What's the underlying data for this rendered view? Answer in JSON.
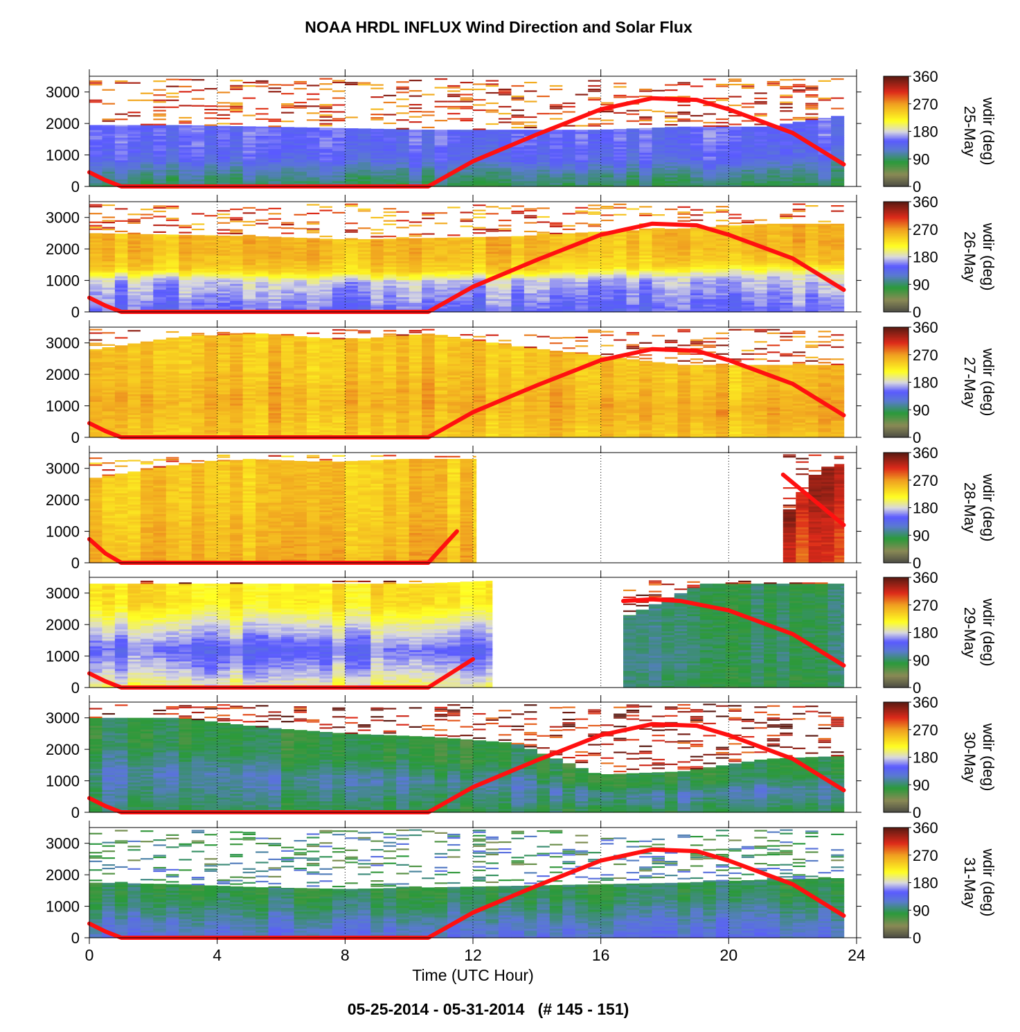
{
  "title": "NOAA HRDL INFLUX Wind Direction and Solar Flux",
  "footer": "05-25-2014 - 05-31-2014   (# 145 - 151)",
  "chart_data": {
    "type": "heatmap",
    "xlabel": "Time (UTC Hour)",
    "x_ticks": [
      0,
      4,
      8,
      12,
      16,
      20,
      24
    ],
    "xlim": [
      0,
      24
    ],
    "y_ticks": [
      0,
      1000,
      2000,
      3000
    ],
    "ylim": [
      0,
      3500
    ],
    "colorbar": {
      "label": "wdir (deg)",
      "ticks": [
        0,
        90,
        180,
        270,
        360
      ],
      "range": [
        0,
        360
      ],
      "stops": [
        {
          "value": 0,
          "color": "#4a4a44"
        },
        {
          "value": 40,
          "color": "#8a8a55"
        },
        {
          "value": 80,
          "color": "#2a9a3a"
        },
        {
          "value": 120,
          "color": "#5a7ad0"
        },
        {
          "value": 150,
          "color": "#5a5aff"
        },
        {
          "value": 180,
          "color": "#d8d8e0"
        },
        {
          "value": 215,
          "color": "#ffff22"
        },
        {
          "value": 270,
          "color": "#f0a020"
        },
        {
          "value": 310,
          "color": "#dd2a1a"
        },
        {
          "value": 360,
          "color": "#5a1a12"
        }
      ]
    },
    "solar_flux_color": "#ff1010",
    "panels": [
      {
        "day": "25-May",
        "segments": [
          {
            "t": [
              0,
              23.6
            ],
            "top": [
              1950,
              1950,
              1900,
              1850,
              1800,
              1800,
              1800,
              1900,
              1900,
              2300
            ],
            "layers": [
              [
                0,
                90
              ],
              [
                0.22,
                110
              ],
              [
                0.45,
                140
              ],
              [
                0.75,
                150
              ]
            ],
            "cap": 300
          }
        ],
        "solar_flux": [
          [
            0,
            450
          ],
          [
            0.5,
            200
          ],
          [
            1,
            0
          ],
          [
            10.6,
            0
          ],
          [
            12,
            800
          ],
          [
            14,
            1650
          ],
          [
            16,
            2450
          ],
          [
            17.6,
            2800
          ],
          [
            19,
            2750
          ],
          [
            20,
            2450
          ],
          [
            22,
            1700
          ],
          [
            23.6,
            700
          ]
        ]
      },
      {
        "day": "26-May",
        "segments": [
          {
            "t": [
              0,
              23.6
            ],
            "top": [
              2500,
              2450,
              2400,
              2300,
              2350,
              2400,
              2550,
              2650,
              2800,
              2800
            ],
            "layers": [
              [
                0,
                150
              ],
              [
                0.4,
                175
              ],
              [
                0.55,
                240
              ],
              [
                0.75,
                255
              ]
            ],
            "cap": 285
          }
        ],
        "solar_flux": [
          [
            0,
            450
          ],
          [
            0.5,
            200
          ],
          [
            1,
            0
          ],
          [
            10.6,
            0
          ],
          [
            12,
            800
          ],
          [
            14,
            1650
          ],
          [
            16,
            2450
          ],
          [
            17.6,
            2800
          ],
          [
            19,
            2750
          ],
          [
            20,
            2450
          ],
          [
            22,
            1700
          ],
          [
            23.6,
            700
          ]
        ]
      },
      {
        "day": "27-May",
        "segments": [
          {
            "t": [
              0,
              23.6
            ],
            "top": [
              2800,
              3200,
              3300,
              3100,
              3300,
              2900,
              2600,
              2300,
              2300,
              2300
            ],
            "layers": [
              [
                0,
                245
              ],
              [
                0.35,
                260
              ],
              [
                0.7,
                250
              ]
            ],
            "cap": 300
          }
        ],
        "solar_flux": [
          [
            0,
            450
          ],
          [
            0.5,
            200
          ],
          [
            1,
            0
          ],
          [
            10.6,
            0
          ],
          [
            12,
            800
          ],
          [
            14,
            1650
          ],
          [
            16,
            2450
          ],
          [
            17.6,
            2800
          ],
          [
            19,
            2750
          ],
          [
            20,
            2450
          ],
          [
            22,
            1700
          ],
          [
            23.6,
            700
          ]
        ]
      },
      {
        "day": "28-May",
        "segments": [
          {
            "t": [
              0,
              12.1
            ],
            "top": [
              2700,
              3100,
              3300,
              3200,
              3300,
              3300
            ],
            "layers": [
              [
                0,
                260
              ],
              [
                0.3,
                255
              ],
              [
                0.6,
                250
              ]
            ],
            "cap": 275
          },
          {
            "t": [
              21.7,
              23.6
            ],
            "top": [
              1700,
              3000,
              3200
            ],
            "layers": [
              [
                0,
                300
              ],
              [
                0.4,
                310
              ],
              [
                0.8,
                330
              ]
            ],
            "cap": 340
          }
        ],
        "solar_flux": [
          [
            0,
            750
          ],
          [
            0.5,
            300
          ],
          [
            1,
            0
          ],
          [
            10.6,
            0
          ],
          [
            11.5,
            1000
          ]
        ],
        "solar_flux_2": [
          [
            21.7,
            2800
          ],
          [
            23.6,
            1200
          ]
        ]
      },
      {
        "day": "29-May",
        "segments": [
          {
            "t": [
              0,
              12.6
            ],
            "top": [
              3300,
              3300,
              3300,
              3300,
              3300,
              3400
            ],
            "layers": [
              [
                0,
                200
              ],
              [
                0.15,
                175
              ],
              [
                0.35,
                150
              ],
              [
                0.6,
                190
              ],
              [
                0.8,
                230
              ]
            ],
            "cap": 310
          },
          {
            "t": [
              16.7,
              23.6
            ],
            "top": [
              2300,
              3300,
              3300,
              3300
            ],
            "layers": [
              [
                0,
                85
              ],
              [
                0.3,
                95
              ],
              [
                0.7,
                90
              ]
            ],
            "cap": 320
          }
        ],
        "solar_flux": [
          [
            0,
            450
          ],
          [
            0.5,
            200
          ],
          [
            1,
            0
          ],
          [
            10.6,
            0
          ],
          [
            12,
            900
          ]
        ],
        "solar_flux_2": [
          [
            16.7,
            2750
          ],
          [
            17.6,
            2800
          ],
          [
            18.5,
            2750
          ],
          [
            20,
            2450
          ],
          [
            22,
            1700
          ],
          [
            23.6,
            700
          ]
        ]
      },
      {
        "day": "30-May",
        "segments": [
          {
            "t": [
              0,
              23.6
            ],
            "top": [
              3000,
              3000,
              2700,
              2500,
              2400,
              2200,
              1200,
              1300,
              1700,
              1800
            ],
            "layers": [
              [
                0,
                85
              ],
              [
                0.4,
                110
              ],
              [
                0.7,
                80
              ]
            ],
            "cap": 330
          }
        ],
        "solar_flux": [
          [
            0,
            450
          ],
          [
            0.5,
            200
          ],
          [
            1,
            0
          ],
          [
            10.6,
            0
          ],
          [
            12,
            800
          ],
          [
            14,
            1650
          ],
          [
            16,
            2450
          ],
          [
            17.6,
            2800
          ],
          [
            19,
            2750
          ],
          [
            20,
            2450
          ],
          [
            22,
            1700
          ],
          [
            23.6,
            700
          ]
        ]
      },
      {
        "day": "31-May",
        "segments": [
          {
            "t": [
              0,
              23.6
            ],
            "top": [
              1750,
              1700,
              1600,
              1550,
              1600,
              1650,
              1700,
              1750,
              1850,
              1900
            ],
            "layers": [
              [
                0,
                130
              ],
              [
                0.3,
                115
              ],
              [
                0.6,
                95
              ],
              [
                0.85,
                85
              ]
            ],
            "cap": 90
          }
        ],
        "solar_flux": [
          [
            0,
            450
          ],
          [
            0.5,
            200
          ],
          [
            1,
            0
          ],
          [
            10.6,
            0
          ],
          [
            12,
            800
          ],
          [
            14,
            1650
          ],
          [
            16,
            2450
          ],
          [
            17.6,
            2800
          ],
          [
            19,
            2750
          ],
          [
            20,
            2450
          ],
          [
            22,
            1700
          ],
          [
            23.6,
            700
          ]
        ]
      }
    ]
  }
}
